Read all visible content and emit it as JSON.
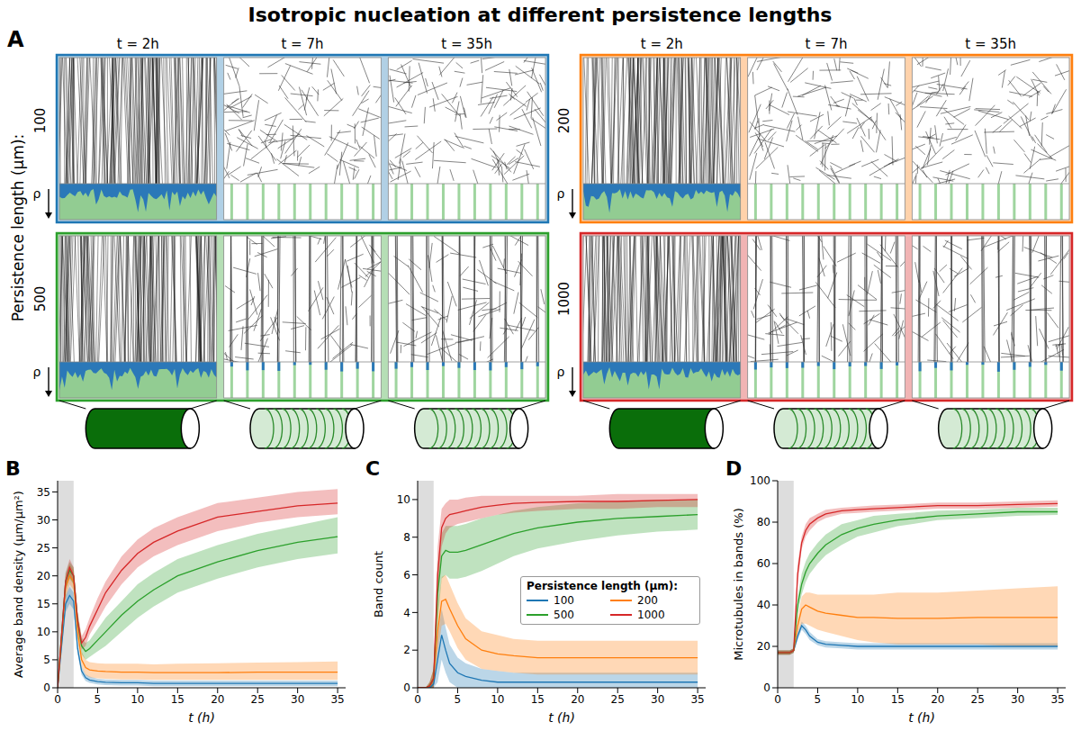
{
  "title": "Isotropic nucleation at different persistence lengths",
  "panel_a": {
    "panel": "A",
    "y_label": "Persistence length (µm):",
    "columns": [
      "t = 2h",
      "t = 7h",
      "t = 35h"
    ],
    "density_label": "ρ",
    "rows": [
      {
        "persistence_length": "100",
        "color": "#1f77b4"
      },
      {
        "persistence_length": "200",
        "color": "#ff7f0e"
      },
      {
        "persistence_length": "500",
        "color": "#2ca02c"
      },
      {
        "persistence_length": "1000",
        "color": "#d62728"
      }
    ]
  },
  "chart_data": [
    {
      "panel": "B",
      "type": "line",
      "x_label": "t (h)",
      "y_label": "Average band density (μm/μm²)",
      "xlim": [
        0,
        36
      ],
      "xticks": [
        0,
        5,
        10,
        15,
        20,
        25,
        30,
        35
      ],
      "ylim": [
        0,
        37
      ],
      "yticks": [
        0,
        5,
        10,
        15,
        20,
        25,
        30,
        35
      ],
      "shaded_span": [
        0,
        2
      ],
      "x": [
        0,
        1,
        1.5,
        2,
        2.5,
        3,
        3.5,
        4,
        5,
        6,
        8,
        10,
        12,
        15,
        20,
        25,
        30,
        35
      ],
      "series": [
        {
          "name": "100",
          "color": "#1f77b4",
          "values": [
            0,
            15,
            16.5,
            15.5,
            7,
            3,
            1.8,
            1.4,
            1.1,
            1,
            0.9,
            0.9,
            0.8,
            0.8,
            0.8,
            0.8,
            0.8,
            0.8
          ],
          "lower": [
            0,
            13.5,
            15,
            14,
            6,
            2.3,
            1.2,
            0.9,
            0.6,
            0.5,
            0.4,
            0.4,
            0.3,
            0.3,
            0.3,
            0.3,
            0.3,
            0.3
          ],
          "upper": [
            0,
            16.5,
            18,
            17,
            8,
            3.8,
            2.4,
            2,
            1.6,
            1.5,
            1.4,
            1.4,
            1.3,
            1.3,
            1.3,
            1.3,
            1.3,
            1.3
          ]
        },
        {
          "name": "200",
          "color": "#ff7f0e",
          "values": [
            0,
            18,
            20,
            19,
            10,
            5,
            3.6,
            3.2,
            3,
            2.9,
            2.8,
            2.8,
            2.7,
            2.7,
            2.7,
            2.8,
            2.8,
            2.8
          ],
          "lower": [
            0,
            16,
            18.5,
            17.5,
            8.5,
            3.8,
            2.3,
            1.9,
            1.7,
            1.6,
            1.5,
            1.5,
            1.4,
            1.4,
            1.4,
            1.4,
            1.4,
            1.4
          ],
          "upper": [
            0,
            20,
            22,
            21,
            11.5,
            6.5,
            5,
            4.6,
            4.4,
            4.3,
            4.3,
            4.3,
            4.2,
            4.3,
            4.4,
            4.5,
            4.6,
            4.7
          ]
        },
        {
          "name": "500",
          "color": "#2ca02c",
          "values": [
            0,
            19,
            21,
            20,
            12,
            7.5,
            6.5,
            7,
            8.5,
            10,
            13,
            15.5,
            17.5,
            20,
            22.5,
            24.5,
            26,
            27
          ],
          "lower": [
            0,
            17.5,
            19.5,
            18.5,
            10.5,
            6,
            5,
            5.5,
            6.5,
            7.5,
            10,
            12.5,
            14.5,
            17,
            19.5,
            21.5,
            23,
            24
          ],
          "upper": [
            0,
            20.5,
            22.5,
            21.5,
            13.5,
            9,
            8,
            8.5,
            10.5,
            12.5,
            15.5,
            18.5,
            20.5,
            23,
            25.5,
            27.5,
            29,
            30.5
          ]
        },
        {
          "name": "1000",
          "color": "#d62728",
          "values": [
            0,
            19,
            21.5,
            20,
            12,
            8,
            9,
            11,
            14,
            17,
            21,
            24,
            26,
            28,
            30.5,
            31.5,
            32.5,
            33
          ],
          "lower": [
            0,
            17.5,
            20,
            18.5,
            10.5,
            6.8,
            7.5,
            9.5,
            12,
            14.5,
            18.5,
            21.5,
            23.5,
            25.5,
            28,
            29.5,
            30.5,
            31
          ],
          "upper": [
            0,
            20.5,
            23,
            21.5,
            13.5,
            9.2,
            10.5,
            12.5,
            16,
            19,
            23.5,
            26.5,
            28.5,
            30.5,
            33,
            34,
            35,
            35.5
          ]
        }
      ]
    },
    {
      "panel": "C",
      "type": "line",
      "x_label": "t (h)",
      "y_label": "Band count",
      "legend": "center right",
      "legend_title": "Persistence length (µm):",
      "xlim": [
        0,
        36
      ],
      "xticks": [
        0,
        5,
        10,
        15,
        20,
        25,
        30,
        35
      ],
      "ylim": [
        0,
        11
      ],
      "yticks": [
        0,
        2,
        4,
        6,
        8,
        10
      ],
      "shaded_span": [
        0,
        2
      ],
      "x": [
        0,
        1,
        1.5,
        2,
        2.5,
        3,
        3.5,
        4,
        5,
        6,
        8,
        10,
        12,
        15,
        20,
        25,
        30,
        35
      ],
      "series": [
        {
          "name": "100",
          "color": "#1f77b4",
          "values": [
            0,
            0,
            0,
            0.2,
            1.5,
            2.8,
            2,
            1.3,
            0.8,
            0.6,
            0.4,
            0.3,
            0.3,
            0.3,
            0.3,
            0.3,
            0.3,
            0.3
          ],
          "lower": [
            0,
            0,
            0,
            0,
            0.3,
            1.5,
            0.8,
            0.3,
            0,
            0,
            0,
            0,
            0,
            0,
            0,
            0,
            0,
            0
          ],
          "upper": [
            0,
            0,
            0,
            0.5,
            2.7,
            4.2,
            3.2,
            2.3,
            1.6,
            1.3,
            1,
            0.9,
            0.8,
            0.8,
            0.8,
            0.8,
            0.8,
            0.8
          ]
        },
        {
          "name": "200",
          "color": "#ff7f0e",
          "values": [
            0,
            0,
            0.1,
            0.5,
            3,
            4.6,
            4.7,
            4.2,
            3.3,
            2.6,
            2,
            1.8,
            1.7,
            1.6,
            1.6,
            1.6,
            1.6,
            1.6
          ],
          "lower": [
            0,
            0,
            0,
            0,
            1.8,
            3.3,
            3.4,
            3,
            2.1,
            1.5,
            1,
            0.9,
            0.8,
            0.7,
            0.7,
            0.7,
            0.7,
            0.7
          ],
          "upper": [
            0,
            0,
            0.3,
            1,
            4.3,
            5.9,
            6,
            5.5,
            4.5,
            3.7,
            3,
            2.8,
            2.6,
            2.5,
            2.5,
            2.5,
            2.5,
            2.5
          ]
        },
        {
          "name": "500",
          "color": "#2ca02c",
          "values": [
            0,
            0,
            0.1,
            0.5,
            5,
            7,
            7.3,
            7.2,
            7.2,
            7.3,
            7.6,
            7.9,
            8.2,
            8.5,
            8.8,
            9,
            9.1,
            9.2
          ],
          "lower": [
            0,
            0,
            0,
            0,
            3.5,
            5.8,
            6,
            5.8,
            5.8,
            5.9,
            6.2,
            6.6,
            7,
            7.4,
            7.8,
            8.1,
            8.3,
            8.4
          ],
          "upper": [
            0,
            0,
            0.3,
            1,
            6.5,
            8.2,
            8.6,
            8.6,
            8.6,
            8.7,
            9,
            9.2,
            9.4,
            9.6,
            9.8,
            9.9,
            10,
            10
          ]
        },
        {
          "name": "1000",
          "color": "#d62728",
          "values": [
            0,
            0,
            0.1,
            0.5,
            6,
            8.5,
            9,
            9.2,
            9.3,
            9.4,
            9.6,
            9.7,
            9.8,
            9.85,
            9.9,
            9.9,
            9.95,
            10
          ],
          "lower": [
            0,
            0,
            0,
            0,
            4.5,
            7.5,
            8.2,
            8.5,
            8.7,
            8.8,
            9,
            9.2,
            9.3,
            9.4,
            9.5,
            9.5,
            9.6,
            9.6
          ],
          "upper": [
            0,
            0,
            0.3,
            1,
            7.5,
            9.5,
            9.8,
            10,
            10,
            10.1,
            10.2,
            10.2,
            10.2,
            10.2,
            10.2,
            10.3,
            10.3,
            10.3
          ]
        }
      ]
    },
    {
      "panel": "D",
      "type": "line",
      "x_label": "t (h)",
      "y_label": "Microtubules in bands (%)",
      "xlim": [
        0,
        36
      ],
      "xticks": [
        0,
        5,
        10,
        15,
        20,
        25,
        30,
        35
      ],
      "ylim": [
        0,
        100
      ],
      "yticks": [
        0,
        20,
        40,
        60,
        80,
        100
      ],
      "shaded_span": [
        0,
        2
      ],
      "x": [
        0,
        1,
        1.5,
        2,
        2.5,
        3,
        3.5,
        4,
        5,
        6,
        8,
        10,
        12,
        15,
        20,
        25,
        30,
        35
      ],
      "series": [
        {
          "name": "100",
          "color": "#1f77b4",
          "values": [
            17,
            17,
            17,
            18,
            25,
            30,
            28,
            25,
            22,
            21,
            20.5,
            20,
            20,
            20,
            20,
            20,
            20,
            20
          ],
          "lower": [
            16,
            16,
            16,
            17,
            23,
            28,
            26,
            23,
            20.5,
            19.5,
            19,
            18.5,
            18.5,
            18.5,
            18.5,
            18.5,
            18.5,
            18.5
          ],
          "upper": [
            18,
            18,
            18,
            19,
            27,
            32,
            30,
            27,
            23.5,
            22.5,
            22,
            21.5,
            21.5,
            21.5,
            21.5,
            21.5,
            21.5,
            21.5
          ]
        },
        {
          "name": "200",
          "color": "#ff7f0e",
          "values": [
            17,
            17,
            17,
            18,
            30,
            38,
            40,
            39,
            37,
            36,
            35,
            34,
            34,
            33.5,
            33.5,
            34,
            34,
            34
          ],
          "lower": [
            16,
            16,
            16,
            17,
            26,
            31,
            31,
            30,
            28,
            27,
            25,
            23,
            22,
            21,
            21,
            21,
            20,
            20
          ],
          "upper": [
            18,
            18,
            18,
            19,
            34,
            44,
            46,
            46,
            45,
            45,
            45,
            45,
            45,
            46,
            46,
            47,
            48,
            49
          ]
        },
        {
          "name": "500",
          "color": "#2ca02c",
          "values": [
            17,
            17,
            17,
            18,
            40,
            50,
            56,
            60,
            65,
            69,
            74,
            77,
            79,
            81,
            83,
            84,
            85,
            85
          ],
          "lower": [
            16,
            16,
            16,
            17,
            36,
            45,
            51,
            55,
            60,
            64,
            69,
            73,
            75,
            78,
            81,
            82,
            83,
            83.5
          ],
          "upper": [
            18,
            18,
            18,
            19,
            44,
            55,
            61,
            65,
            70,
            74,
            79,
            81,
            83,
            84,
            85.5,
            86,
            87,
            87
          ]
        },
        {
          "name": "1000",
          "color": "#d62728",
          "values": [
            17,
            17,
            17,
            18,
            55,
            70,
            76,
            79,
            82,
            84,
            85.5,
            86,
            86.5,
            87,
            88,
            88,
            88.5,
            89
          ],
          "lower": [
            16,
            16,
            16,
            17,
            50,
            67,
            73,
            76,
            80,
            82,
            84,
            84.5,
            85,
            85.5,
            86.5,
            86.5,
            87,
            87.5
          ],
          "upper": [
            18,
            18,
            18,
            19,
            60,
            73,
            79,
            82,
            84,
            86,
            87,
            87.5,
            88,
            88.5,
            89.5,
            89.5,
            90,
            90.5
          ]
        }
      ]
    }
  ]
}
